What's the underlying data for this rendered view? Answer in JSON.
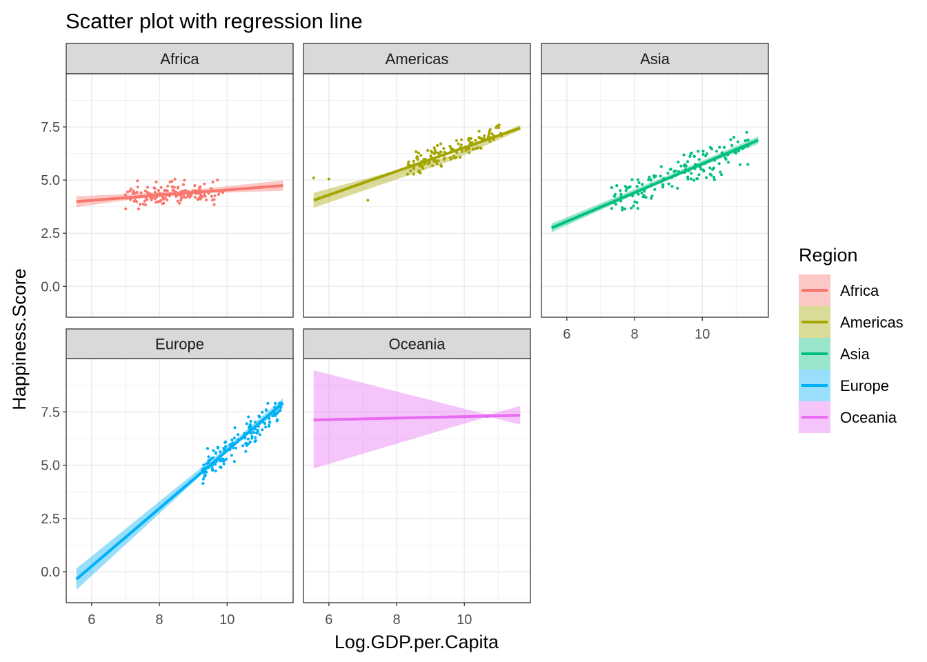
{
  "chart_data": {
    "type": "scatter",
    "title": "Scatter plot with regression line",
    "xlabel": "Log.GDP.per.Capita",
    "ylabel": "Happiness.Score",
    "xlim": [
      5.25,
      11.95
    ],
    "ylim": [
      -1.45,
      10.0
    ],
    "x_ticks": [
      6,
      8,
      10
    ],
    "y_ticks": [
      0.0,
      2.5,
      5.0,
      7.5
    ],
    "y_tick_labels": [
      "0.0",
      "2.5",
      "5.0",
      "7.5"
    ],
    "x_tick_labels": [
      "6",
      "8",
      "10"
    ],
    "grid": true,
    "legend": {
      "title": "Region",
      "position": "right",
      "entries": [
        "Africa",
        "Americas",
        "Asia",
        "Europe",
        "Oceania"
      ]
    },
    "colors": {
      "Africa": "#F8766D",
      "Americas": "#A3A500",
      "Asia": "#00BF7D",
      "Europe": "#00B0F6",
      "Oceania": "#E76BF3"
    },
    "panels": [
      {
        "name": "Africa",
        "regression": {
          "x": [
            5.55,
            11.65
          ],
          "y": [
            3.99,
            4.74
          ],
          "band_lower": [
            3.73,
            4.5
          ],
          "band_upper": [
            4.24,
            4.98
          ],
          "band_mid": [
            8.3,
            4.33,
            4.44
          ]
        },
        "cluster": {
          "x_range": [
            7.0,
            9.9
          ],
          "y_range": [
            2.7,
            5.6
          ]
        }
      },
      {
        "name": "Americas",
        "regression": {
          "x": [
            5.55,
            11.65
          ],
          "y": [
            4.05,
            7.45
          ],
          "band_lower": [
            3.7,
            7.35
          ],
          "band_upper": [
            4.4,
            7.6
          ],
          "band_mid": [
            9.6,
            5.9,
            6.15
          ]
        },
        "cluster": {
          "x_range": [
            8.3,
            11.1
          ],
          "y_range": [
            4.7,
            7.6
          ]
        },
        "outliers": [
          {
            "x": 5.55,
            "y": 5.1
          },
          {
            "x": 6.0,
            "y": 5.05
          },
          {
            "x": 7.15,
            "y": 4.05
          }
        ]
      },
      {
        "name": "Asia",
        "regression": {
          "x": [
            5.55,
            11.65
          ],
          "y": [
            2.75,
            6.88
          ],
          "band_lower": [
            2.55,
            6.7
          ],
          "band_upper": [
            2.95,
            7.05
          ],
          "band_mid": [
            9.0,
            5.03,
            5.23
          ]
        },
        "cluster": {
          "x_range": [
            7.3,
            11.4
          ],
          "y_range": [
            2.4,
            7.4
          ]
        }
      },
      {
        "name": "Europe",
        "regression": {
          "x": [
            5.55,
            11.65
          ],
          "y": [
            -0.35,
            7.92
          ],
          "band_lower": [
            -0.85,
            7.7
          ],
          "band_upper": [
            0.15,
            8.15
          ],
          "band_mid": [
            10.1,
            5.8,
            6.0
          ]
        },
        "cluster": {
          "x_range": [
            9.25,
            11.65
          ],
          "y_range": [
            3.9,
            7.9
          ]
        }
      },
      {
        "name": "Oceania",
        "regression": {
          "x": [
            5.55,
            11.65
          ],
          "y": [
            7.12,
            7.34
          ],
          "band_lower": [
            4.85,
            6.9
          ],
          "band_upper": [
            9.45,
            7.78
          ],
          "band_mid": [
            10.7,
            7.28,
            7.36
          ]
        },
        "cluster": {
          "x_range": [
            10.55,
            10.85
          ],
          "y_range": [
            7.25,
            7.45
          ]
        }
      }
    ]
  }
}
